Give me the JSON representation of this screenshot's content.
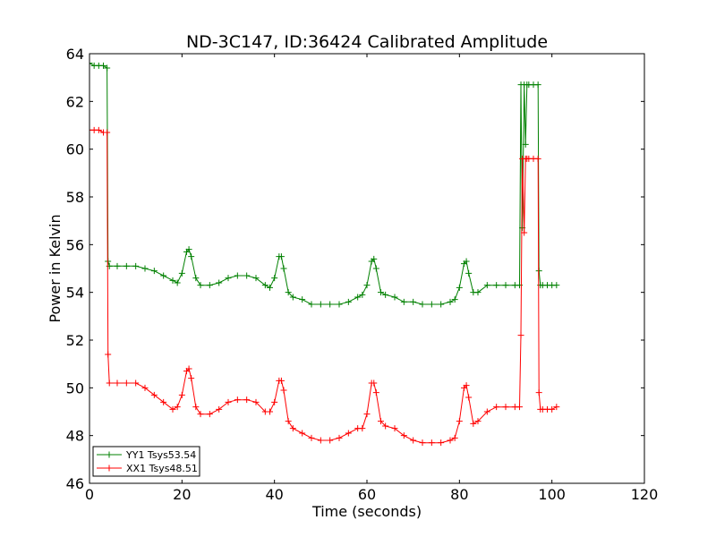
{
  "chart_data": {
    "type": "line",
    "title": "ND-3C147, ID:36424 Calibrated Amplitude",
    "xlabel": "Time (seconds)",
    "ylabel": "Power in Kelvin",
    "xlim": [
      0,
      120
    ],
    "ylim": [
      46,
      64
    ],
    "xticks": [
      "0",
      "20",
      "40",
      "60",
      "80",
      "100",
      "120"
    ],
    "yticks": [
      "46",
      "48",
      "50",
      "52",
      "54",
      "56",
      "58",
      "60",
      "62",
      "64"
    ],
    "grid": false,
    "legend_position": "lower-left",
    "marker": "+",
    "series": [
      {
        "name": "YY1 Tsys53.54",
        "color": "#008000",
        "x": [
          0,
          1,
          2,
          3,
          3.8,
          4.0,
          4.3,
          6,
          8,
          10,
          12,
          14,
          16,
          18,
          19,
          20,
          21,
          21.5,
          22,
          23,
          24,
          26,
          28,
          30,
          32,
          34,
          36,
          38,
          39,
          40,
          41,
          41.5,
          42,
          43,
          44,
          46,
          48,
          50,
          52,
          54,
          56,
          58,
          59,
          60,
          61,
          61.5,
          62,
          63,
          64,
          66,
          68,
          70,
          72,
          74,
          76,
          78,
          79,
          80,
          81,
          81.5,
          82,
          83,
          84,
          86,
          88,
          90,
          92,
          93,
          93.3,
          93.6,
          94,
          94.3,
          94.6,
          95,
          96,
          97,
          97.2,
          97.5,
          98,
          99,
          100,
          101
        ],
        "y": [
          63.6,
          63.5,
          63.5,
          63.5,
          63.4,
          55.3,
          55.1,
          55.1,
          55.1,
          55.1,
          55.0,
          54.9,
          54.7,
          54.5,
          54.4,
          54.8,
          55.7,
          55.8,
          55.5,
          54.6,
          54.3,
          54.3,
          54.4,
          54.6,
          54.7,
          54.7,
          54.6,
          54.3,
          54.2,
          54.6,
          55.5,
          55.5,
          55.0,
          54.0,
          53.8,
          53.7,
          53.5,
          53.5,
          53.5,
          53.5,
          53.6,
          53.8,
          53.9,
          54.3,
          55.3,
          55.4,
          55.0,
          54.0,
          53.9,
          53.8,
          53.6,
          53.6,
          53.5,
          53.5,
          53.5,
          53.6,
          53.7,
          54.2,
          55.2,
          55.3,
          54.8,
          54.0,
          54.0,
          54.3,
          54.3,
          54.3,
          54.3,
          54.3,
          62.7,
          56.7,
          62.7,
          60.2,
          62.7,
          62.7,
          62.7,
          62.7,
          54.9,
          54.3,
          54.3,
          54.3,
          54.3,
          54.3
        ]
      },
      {
        "name": "XX1 Tsys48.51",
        "color": "#ff0000",
        "x": [
          0,
          1,
          2,
          3,
          3.8,
          4.0,
          4.3,
          6,
          8,
          10,
          12,
          14,
          16,
          18,
          19,
          20,
          21,
          21.5,
          22,
          23,
          24,
          26,
          28,
          30,
          32,
          34,
          36,
          38,
          39,
          40,
          41,
          41.5,
          42,
          43,
          44,
          46,
          48,
          50,
          52,
          54,
          56,
          58,
          59,
          60,
          61,
          61.5,
          62,
          63,
          64,
          66,
          68,
          70,
          72,
          74,
          76,
          78,
          79,
          80,
          81,
          81.5,
          82,
          83,
          84,
          86,
          88,
          90,
          92,
          93,
          93.3,
          93.6,
          94,
          94.3,
          94.6,
          95,
          96,
          97,
          97.2,
          97.5,
          98,
          99,
          100,
          101
        ],
        "y": [
          60.8,
          60.8,
          60.8,
          60.7,
          60.7,
          51.4,
          50.2,
          50.2,
          50.2,
          50.2,
          50.0,
          49.7,
          49.4,
          49.1,
          49.2,
          49.7,
          50.7,
          50.8,
          50.4,
          49.2,
          48.9,
          48.9,
          49.1,
          49.4,
          49.5,
          49.5,
          49.4,
          49.0,
          49.0,
          49.4,
          50.3,
          50.3,
          49.9,
          48.6,
          48.3,
          48.1,
          47.9,
          47.8,
          47.8,
          47.9,
          48.1,
          48.3,
          48.3,
          48.9,
          50.2,
          50.2,
          49.8,
          48.6,
          48.4,
          48.3,
          48.0,
          47.8,
          47.7,
          47.7,
          47.7,
          47.8,
          47.9,
          48.6,
          50.0,
          50.1,
          49.6,
          48.5,
          48.6,
          49.0,
          49.2,
          49.2,
          49.2,
          49.2,
          52.2,
          59.6,
          56.5,
          59.6,
          59.6,
          59.6,
          59.6,
          59.6,
          49.8,
          49.1,
          49.1,
          49.1,
          49.1,
          49.2
        ]
      }
    ]
  }
}
